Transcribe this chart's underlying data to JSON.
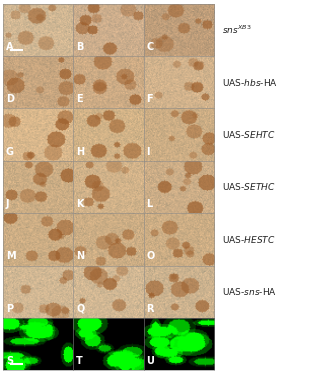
{
  "panel_labels": [
    "A",
    "B",
    "C",
    "D",
    "E",
    "F",
    "G",
    "H",
    "I",
    "J",
    "K",
    "L",
    "M",
    "N",
    "O",
    "P",
    "Q",
    "R",
    "S",
    "T",
    "U"
  ],
  "row_labels": [
    {
      "text": "sns",
      "superscript": "XB3",
      "italic": true
    },
    {
      "text": "UAS-hbs-HA",
      "italic": false
    },
    {
      "text": "UAS-SEHTC",
      "italic": false
    },
    {
      "text": "UAS-SETHC",
      "italic": false
    },
    {
      "text": "UAS-HESTC",
      "italic": false
    },
    {
      "text": "UAS-sns-HA",
      "italic": false
    },
    {
      "text": "",
      "italic": false
    }
  ],
  "row_label_formats": [
    {
      "prefix": "sns",
      "prefix_italic": true,
      "superscript": "XB3",
      "suffix": "",
      "suffix_italic": false
    },
    {
      "prefix": "UAS-",
      "prefix_italic": false,
      "superscript": "",
      "suffix": "hbs-HA",
      "suffix_italic": true
    },
    {
      "prefix": "UAS-",
      "prefix_italic": false,
      "superscript": "",
      "suffix": "SEHTC",
      "suffix_italic": false
    },
    {
      "prefix": "UAS-",
      "prefix_italic": false,
      "superscript": "",
      "suffix": "SETHC",
      "suffix_italic": false
    },
    {
      "prefix": "UAS-",
      "prefix_italic": false,
      "superscript": "",
      "suffix": "HESTC",
      "suffix_italic": true
    },
    {
      "prefix": "UAS-",
      "prefix_italic": false,
      "superscript": "",
      "suffix": "sns-HA",
      "suffix_italic": true
    },
    {
      "prefix": "",
      "prefix_italic": false,
      "superscript": "",
      "suffix": "",
      "suffix_italic": false
    }
  ],
  "ncols": 3,
  "nrows": 7,
  "bg_color": "#ffffff",
  "label_color": "#333333",
  "label_fontsize": 6.5,
  "panel_label_fontsize": 7,
  "panel_label_color": "#f0f0f0",
  "row_colors_brown": [
    "#c8966e",
    "#b8845a",
    "#c89060",
    "#b88050",
    "#c08860",
    "#c09060"
  ],
  "row_color_green": "#000000",
  "figure_width": 3.12,
  "figure_height": 3.74
}
